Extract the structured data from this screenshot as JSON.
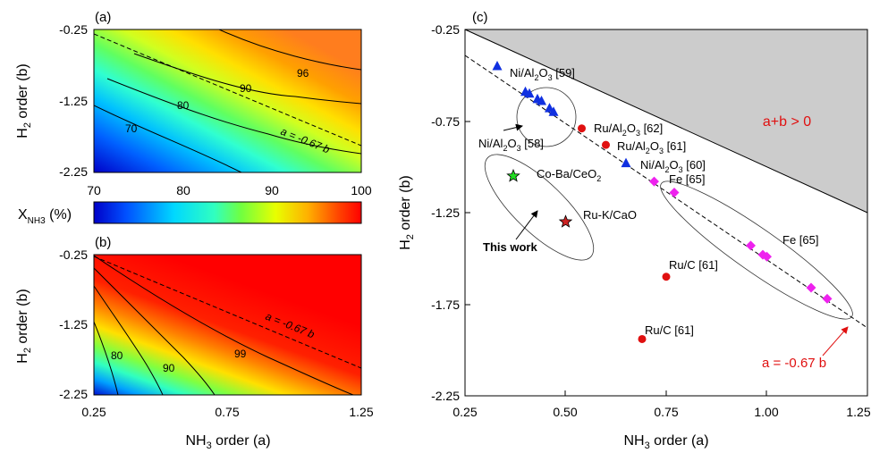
{
  "panel_a": {
    "tag": "(a)",
    "ylabel": "H2 order (b)",
    "yticks": [
      "-0.25",
      "-1.25",
      "-2.25"
    ],
    "contour_labels": [
      "96",
      "90",
      "80",
      "70"
    ],
    "dashed_label": "a = -0.67 b"
  },
  "colorbar": {
    "label": "X_NH3 (%)",
    "ticks": [
      "70",
      "80",
      "90",
      "100"
    ]
  },
  "panel_b": {
    "tag": "(b)",
    "ylabel": "H2 order (b)",
    "xlabel": "NH3 order (a)",
    "yticks": [
      "-0.25",
      "-1.25",
      "-2.25"
    ],
    "xticks": [
      "0.25",
      "0.75",
      "1.25"
    ],
    "contour_labels": [
      "80",
      "90",
      "99"
    ],
    "dashed_label": "a = -0.67 b"
  },
  "panel_c": {
    "tag": "(c)",
    "xlabel": "NH3 order (a)",
    "ylabel": "H2 order (b)",
    "xticks": [
      "0.25",
      "0.50",
      "0.75",
      "1.00",
      "1.25"
    ],
    "yticks": [
      "-0.25",
      "-0.75",
      "-1.25",
      "-1.75",
      "-2.25"
    ],
    "region_label": "a+b > 0",
    "line_label": "a = -0.67 b",
    "this_work_label": "This work",
    "labels": {
      "ni59": "Ni/Al2O3 [59]",
      "ni58": "Ni/Al2O3 [58]",
      "ru62": "Ru/Al2O3 [62]",
      "ru61": "Ru/Al2O3 [61]",
      "ni60": "Ni/Al2O3 [60]",
      "fe65a": "Fe [65]",
      "fe65b": "Fe [65]",
      "coba": "Co-Ba/CeO2",
      "ruk": "Ru-K/CaO",
      "ruc1": "Ru/C [61]",
      "ruc2": "Ru/C [61]"
    }
  },
  "colors": {
    "ni": "#1030e0",
    "ru": "#e01010",
    "fe": "#ee22ee",
    "region": "#cccccc",
    "annotation_red": "#e01010",
    "star_green": "#22dd22",
    "star_red": "#cc2222"
  },
  "chart_data": [
    {
      "type": "heatmap",
      "panel": "a",
      "title": "",
      "xlabel": "",
      "ylabel": "H2 order (b)",
      "xlim": [
        0.25,
        1.25
      ],
      "ylim": [
        -2.25,
        -0.25
      ],
      "value_range": [
        70,
        100
      ],
      "contour_levels": [
        70,
        80,
        90,
        96
      ],
      "reference_line": {
        "label": "a = -0.67 b",
        "slope": -1.4925
      }
    },
    {
      "type": "heatmap",
      "panel": "b",
      "title": "",
      "xlabel": "NH3 order (a)",
      "ylabel": "H2 order (b)",
      "xlim": [
        0.25,
        1.25
      ],
      "ylim": [
        -2.25,
        -0.25
      ],
      "value_range": [
        70,
        100
      ],
      "contour_levels": [
        80,
        90,
        99
      ],
      "reference_line": {
        "label": "a = -0.67 b",
        "slope": -1.4925
      }
    },
    {
      "type": "scatter",
      "panel": "c",
      "title": "",
      "xlabel": "NH3 order (a)",
      "ylabel": "H2 order (b)",
      "xlim": [
        0.25,
        1.25
      ],
      "ylim": [
        -2.25,
        -0.25
      ],
      "shaded_region": {
        "label": "a+b > 0",
        "condition": "a + b > 0"
      },
      "reference_line": {
        "label": "a = -0.67 b",
        "slope": -1.4925
      },
      "series": [
        {
          "marker": "triangle",
          "color": "#1030e0",
          "points": [
            [
              0.33,
              -0.45
            ],
            [
              0.4,
              -0.59
            ],
            [
              0.41,
              -0.6
            ],
            [
              0.43,
              -0.63
            ],
            [
              0.44,
              -0.64
            ],
            [
              0.46,
              -0.68
            ],
            [
              0.47,
              -0.7
            ],
            [
              0.65,
              -0.98
            ]
          ]
        },
        {
          "marker": "circle",
          "color": "#e01010",
          "points": [
            [
              0.54,
              -0.79
            ],
            [
              0.6,
              -0.88
            ],
            [
              0.75,
              -1.6
            ],
            [
              0.69,
              -1.94
            ]
          ]
        },
        {
          "marker": "diamond",
          "color": "#ee22ee",
          "points": [
            [
              0.72,
              -1.08
            ],
            [
              0.77,
              -1.14
            ],
            [
              0.96,
              -1.43
            ],
            [
              0.99,
              -1.48
            ],
            [
              1.0,
              -1.49
            ],
            [
              1.11,
              -1.66
            ],
            [
              1.15,
              -1.72
            ]
          ]
        },
        {
          "marker": "star",
          "color": "#22dd22",
          "points": [
            [
              0.37,
              -1.05
            ]
          ]
        },
        {
          "marker": "star",
          "color": "#cc2222",
          "points": [
            [
              0.5,
              -1.3
            ]
          ]
        }
      ]
    }
  ]
}
